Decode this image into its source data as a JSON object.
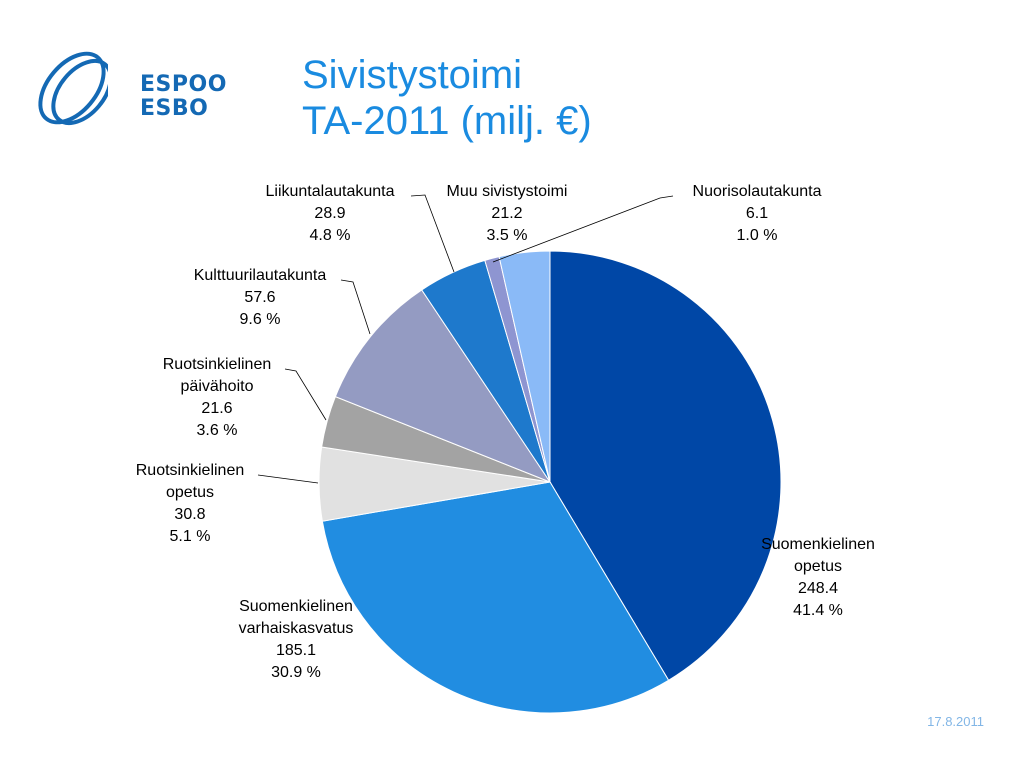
{
  "logo": {
    "line1": "ESPOO",
    "line2": "ESBO",
    "color": "#1469b4"
  },
  "title": {
    "line1": "Sivistystoimi",
    "line2": "TA-2011 (milj. €)"
  },
  "footer": {
    "date": "17.8.2011"
  },
  "chart_data": {
    "type": "pie",
    "start_angle_deg": 0,
    "direction": "clockwise",
    "slices": [
      {
        "label": [
          "Suomenkielinen",
          "opetus"
        ],
        "value": 248.4,
        "value_text": "248.4",
        "percent": "41.4 %",
        "color": "#0047a6"
      },
      {
        "label": [
          "Suomenkielinen",
          "varhaiskasvatus"
        ],
        "value": 185.1,
        "value_text": "185.1",
        "percent": "30.9 %",
        "color": "#218de1"
      },
      {
        "label": [
          "Ruotsinkielinen",
          "opetus"
        ],
        "value": 30.8,
        "value_text": "30.8",
        "percent": "5.1 %",
        "color": "#e1e1e1"
      },
      {
        "label": [
          "Ruotsinkielinen",
          "päivähoito"
        ],
        "value": 21.6,
        "value_text": "21.6",
        "percent": "3.6 %",
        "color": "#a3a3a3"
      },
      {
        "label": [
          "Kulttuurilautakunta"
        ],
        "value": 57.6,
        "value_text": "57.6",
        "percent": "9.6 %",
        "color": "#949bc2"
      },
      {
        "label": [
          "Liikuntalautakunta"
        ],
        "value": 28.9,
        "value_text": "28.9",
        "percent": "4.8 %",
        "color": "#1e79cc"
      },
      {
        "label": [
          "Nuorisolautakunta"
        ],
        "value": 6.1,
        "value_text": "6.1",
        "percent": "1.0 %",
        "color": "#8e95d1"
      },
      {
        "label": [
          "Muu sivistystoimi"
        ],
        "value": 21.2,
        "value_text": "21.2",
        "percent": "3.5 %",
        "color": "#8abaf7"
      }
    ]
  }
}
